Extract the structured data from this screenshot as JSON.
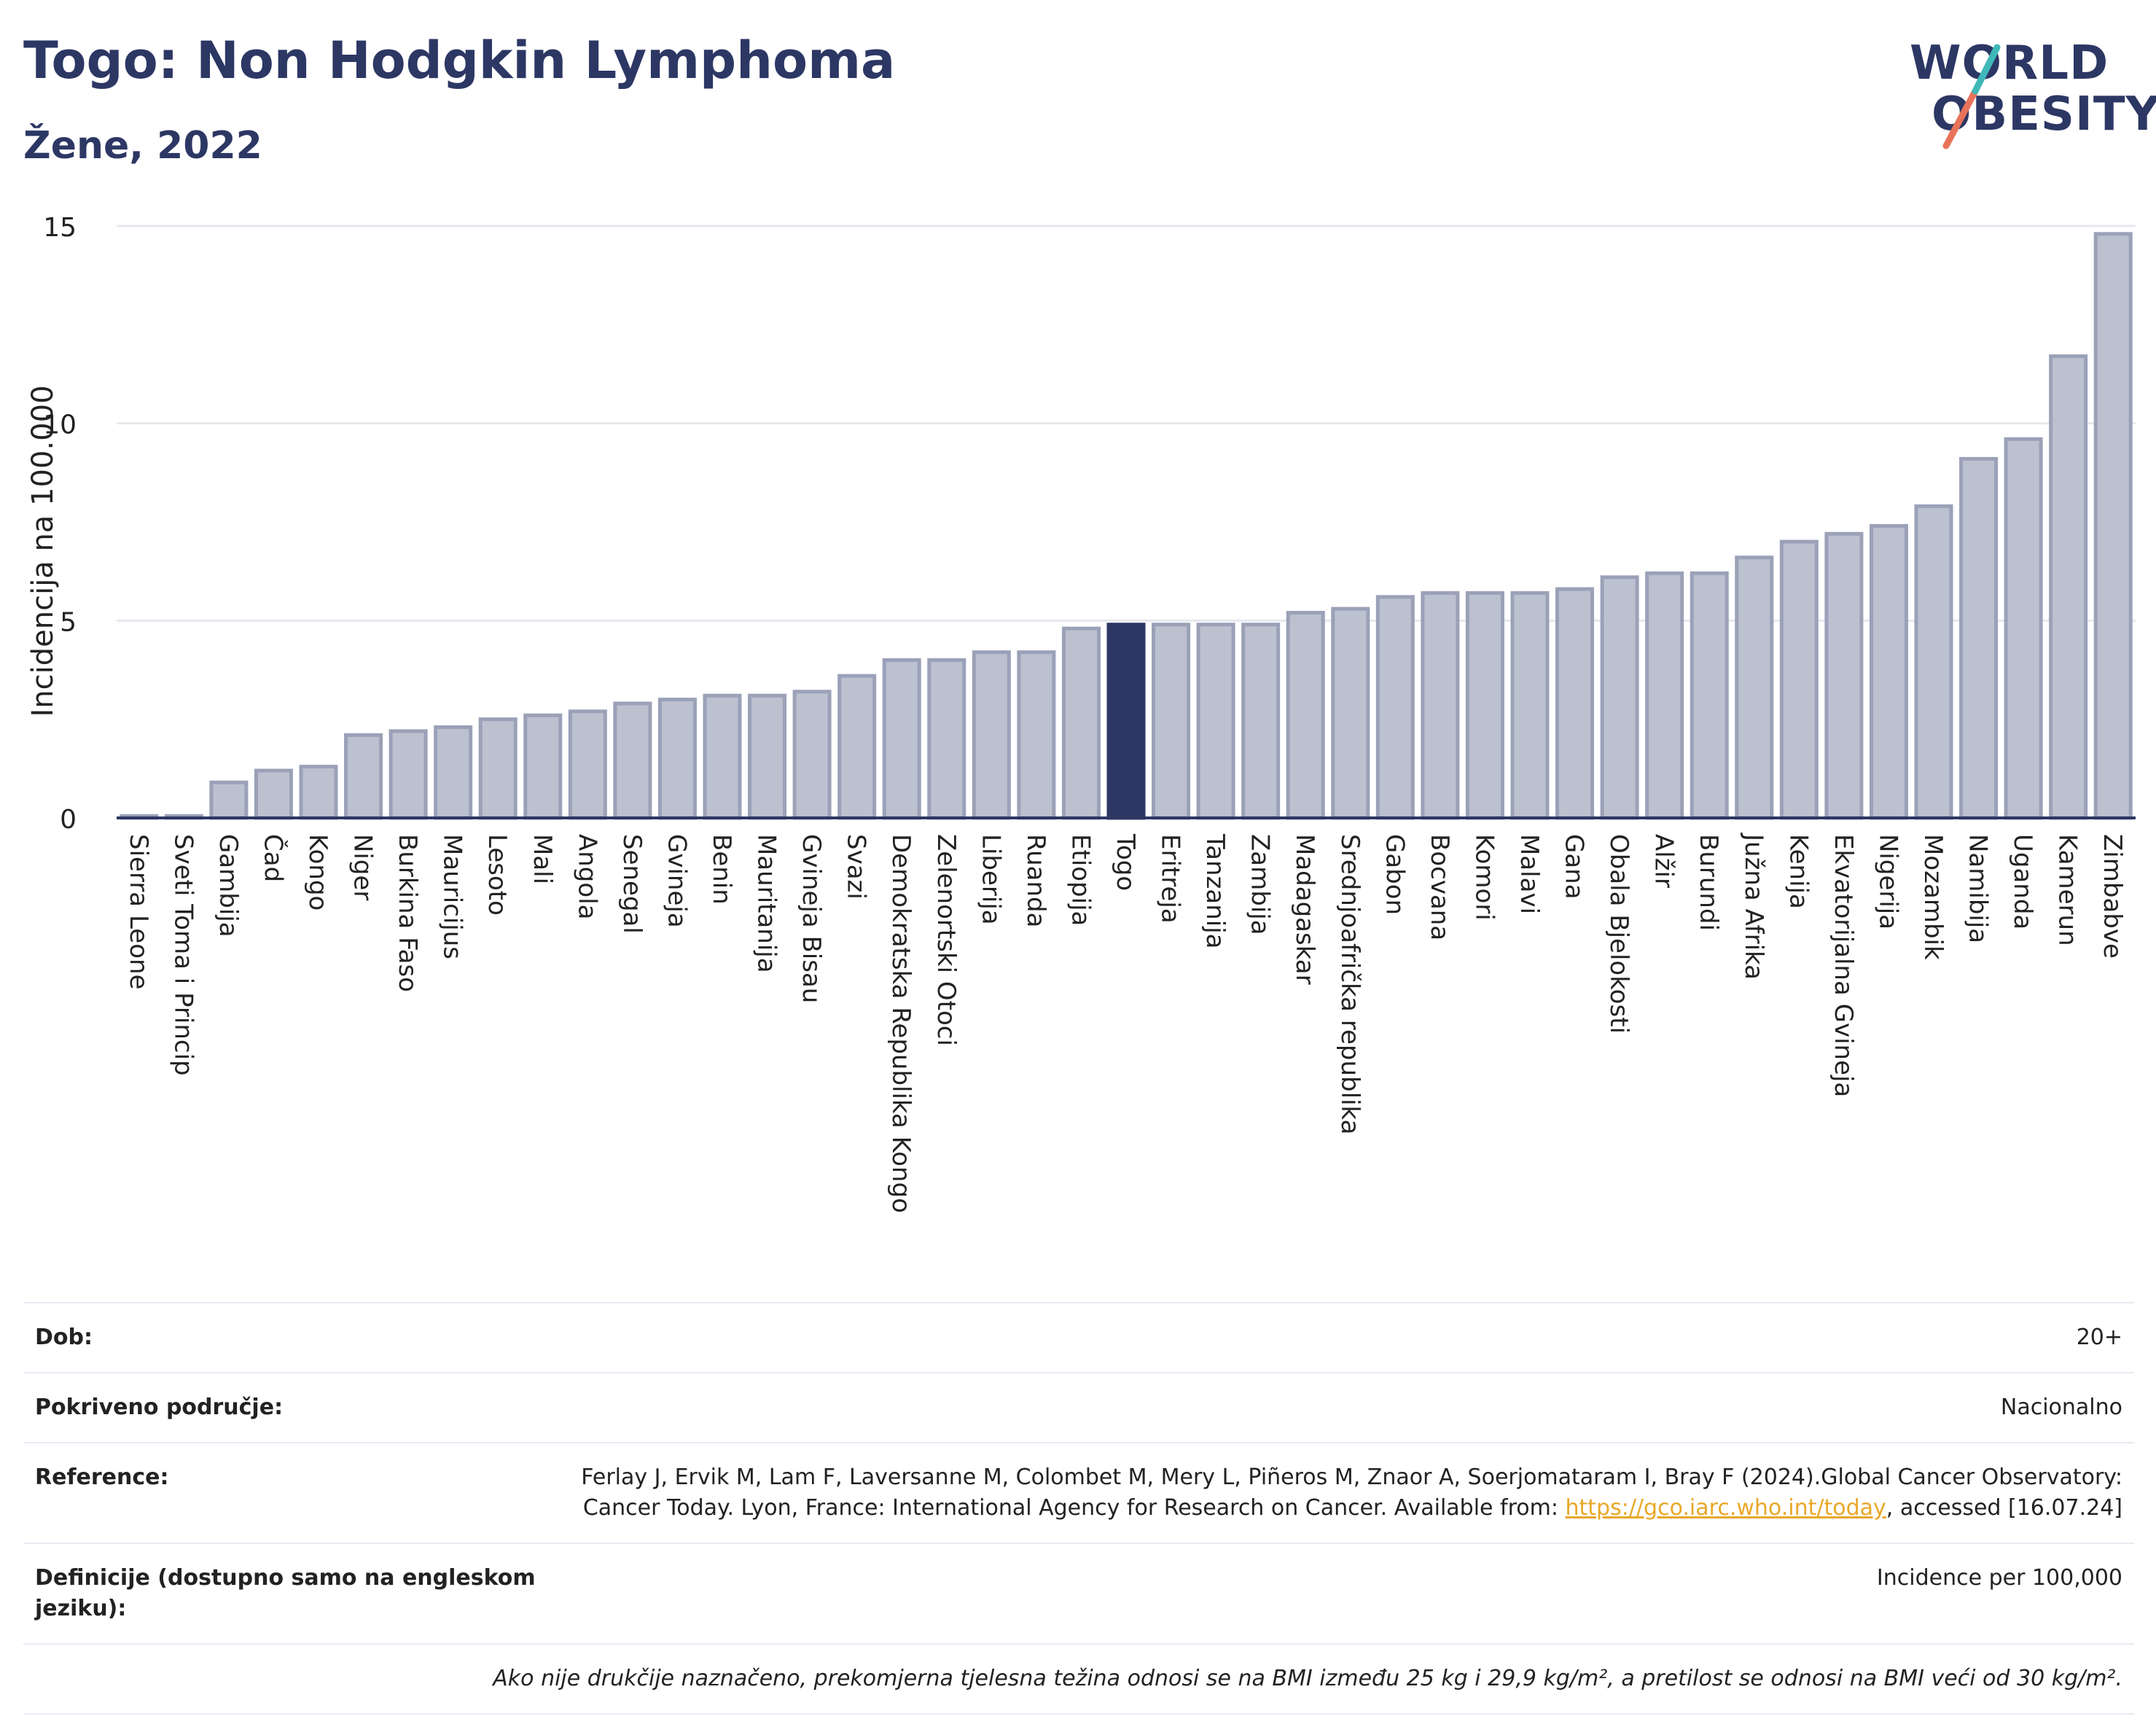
{
  "header": {
    "title": "Togo: Non Hodgkin Lymphoma",
    "subtitle": "Žene, 2022"
  },
  "logo": {
    "line1": "WORLD",
    "line2": "OBESITY"
  },
  "chart_data": {
    "type": "bar",
    "ylabel": "Incidencija na 100.000",
    "ylim": [
      0,
      15
    ],
    "yticks": [
      0,
      5,
      10,
      15
    ],
    "grid": true,
    "highlight": "Togo",
    "colors": {
      "bar": "#bcc1cf",
      "bar_border": "#9aa1b8",
      "highlight": "#2c3764"
    },
    "categories": [
      "Sierra Leone",
      "Sveti Toma i Princip",
      "Gambija",
      "Čad",
      "Kongo",
      "Niger",
      "Burkina Faso",
      "Mauricijus",
      "Lesoto",
      "Mali",
      "Angola",
      "Senegal",
      "Gvineja",
      "Benin",
      "Mauritanija",
      "Gvineja Bisau",
      "Svazi",
      "Demokratska Republika Kongo",
      "Zelenortski Otoci",
      "Liberija",
      "Ruanda",
      "Etiopija",
      "Togo",
      "Eritreja",
      "Tanzanija",
      "Zambija",
      "Madagaskar",
      "Srednjoafrička republika",
      "Gabon",
      "Bocvana",
      "Komori",
      "Malavi",
      "Gana",
      "Obala Bjelokosti",
      "Alžir",
      "Burundi",
      "Južna Afrika",
      "Kenija",
      "Ekvatorijalna Gvineja",
      "Nigerija",
      "Mozambik",
      "Namibija",
      "Uganda",
      "Kamerun",
      "Zimbabve"
    ],
    "values": [
      0.05,
      0.05,
      0.9,
      1.2,
      1.3,
      2.1,
      2.2,
      2.3,
      2.5,
      2.6,
      2.7,
      2.9,
      3.0,
      3.1,
      3.1,
      3.2,
      3.6,
      4.0,
      4.0,
      4.2,
      4.2,
      4.8,
      4.9,
      4.9,
      4.9,
      4.9,
      5.2,
      5.3,
      5.6,
      5.7,
      5.7,
      5.7,
      5.8,
      6.1,
      6.2,
      6.2,
      6.6,
      7.0,
      7.2,
      7.4,
      7.9,
      9.1,
      9.6,
      11.7,
      14.8
    ]
  },
  "info": {
    "age_label": "Dob:",
    "age_value": "20+",
    "coverage_label": "Pokriveno područje:",
    "coverage_value": "Nacionalno",
    "reference_label": "Reference:",
    "reference_text_1": "Ferlay J, Ervik M, Lam F, Laversanne M, Colombet M, Mery L, Piñeros M, Znaor A, Soerjomataram I, Bray F (2024).Global Cancer Observatory: Cancer Today. Lyon, France: International Agency for Research on Cancer. Available from: ",
    "reference_link": "https://gco.iarc.who.int/today",
    "reference_text_2": ", accessed [16.07.24]",
    "definitions_label": "Definicije (dostupno samo na engleskom jeziku):",
    "definitions_value": "Incidence per 100,000",
    "note": "Ako nije drukčije naznačeno, prekomjerna tjelesna težina odnosi se na BMI između 25 kg i 29,9 kg/m², a pretilost se odnosi na BMI veći od 30 kg/m²."
  }
}
